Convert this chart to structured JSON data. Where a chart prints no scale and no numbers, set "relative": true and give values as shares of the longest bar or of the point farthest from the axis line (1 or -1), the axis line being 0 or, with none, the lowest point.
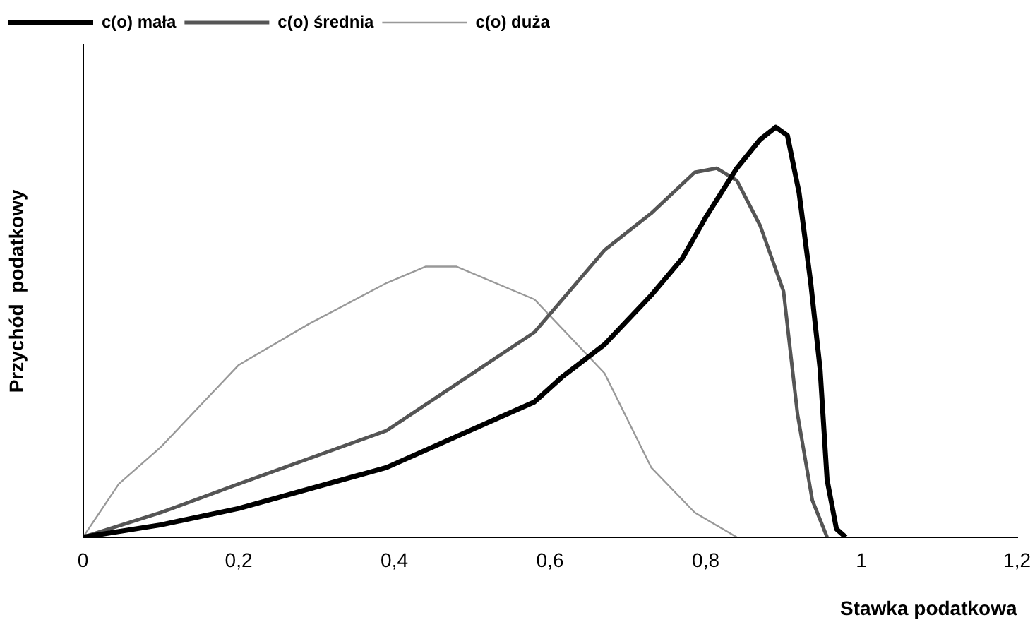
{
  "chart_data": {
    "type": "line",
    "xlabel": "Stawka podatkowa",
    "ylabel": "Przychód  podatkowy",
    "relative": true,
    "legend": "top left",
    "grid": false,
    "marker": "none",
    "xlim": [
      0,
      1.2
    ],
    "xticks": [
      0,
      {
        "value": 0.2,
        "label": "0,2"
      },
      {
        "value": 0.4,
        "label": "0,4"
      },
      {
        "value": 0.6,
        "label": "0,6"
      },
      {
        "value": 0.8,
        "label": "0,8"
      },
      1,
      {
        "value": 1.2,
        "label": "1,2"
      }
    ],
    "series": [
      {
        "name": "c(o) mała",
        "color": "#000000",
        "x": [
          0,
          0.1,
          0.2,
          0.39,
          0.58,
          0.615,
          0.67,
          0.73,
          0.77,
          0.8,
          0.84,
          0.87,
          0.89,
          0.905,
          0.92,
          0.935,
          0.947,
          0.956,
          0.968,
          0.98
        ],
        "values": [
          0,
          0.03,
          0.07,
          0.17,
          0.33,
          0.39,
          0.47,
          0.59,
          0.68,
          0.78,
          0.9,
          0.97,
          1,
          0.98,
          0.84,
          0.62,
          0.41,
          0.14,
          0.02,
          0
        ]
      },
      {
        "name": "c(o) średnia",
        "color": "#555555",
        "x": [
          0,
          0.1,
          0.2,
          0.39,
          0.58,
          0.67,
          0.73,
          0.786,
          0.814,
          0.84,
          0.87,
          0.9,
          0.918,
          0.937,
          0.956
        ],
        "values": [
          0,
          0.06,
          0.13,
          0.26,
          0.5,
          0.7,
          0.79,
          0.89,
          0.9,
          0.87,
          0.76,
          0.6,
          0.3,
          0.09,
          0
        ]
      },
      {
        "name": "c(o) duża",
        "color": "#999999",
        "x": [
          0,
          0.046,
          0.1,
          0.2,
          0.29,
          0.39,
          0.44,
          0.48,
          0.58,
          0.615,
          0.67,
          0.73,
          0.786,
          0.84
        ],
        "values": [
          0,
          0.13,
          0.22,
          0.42,
          0.52,
          0.62,
          0.66,
          0.66,
          0.58,
          0.51,
          0.4,
          0.17,
          0.06,
          0
        ]
      }
    ]
  }
}
